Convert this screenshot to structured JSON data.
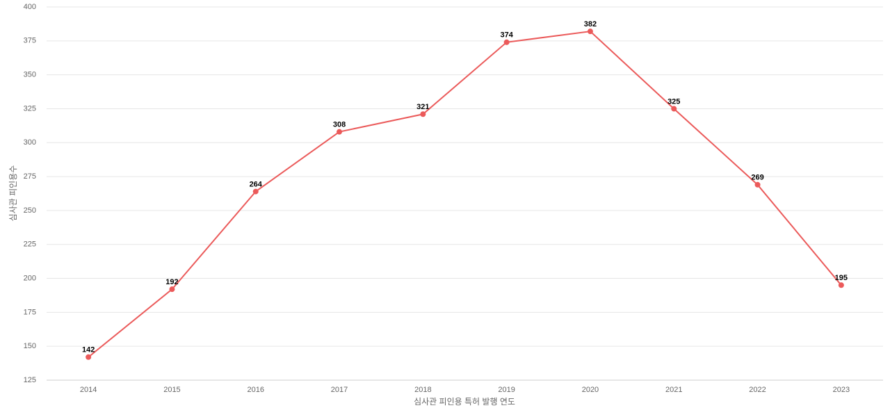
{
  "chart_data": {
    "type": "line",
    "x_label": "심사관 피인용 특허 발행 연도",
    "y_label": "심사관 피인용수",
    "categories": [
      "2014",
      "2015",
      "2016",
      "2017",
      "2018",
      "2019",
      "2020",
      "2021",
      "2022",
      "2023"
    ],
    "values": [
      142,
      192,
      264,
      308,
      321,
      374,
      382,
      325,
      269,
      195
    ],
    "color": "#eb5a5a",
    "ylim": [
      125,
      400
    ],
    "yticks": [
      125,
      150,
      175,
      200,
      225,
      250,
      275,
      300,
      325,
      350,
      375,
      400
    ],
    "grid": true,
    "data_labels": true
  }
}
